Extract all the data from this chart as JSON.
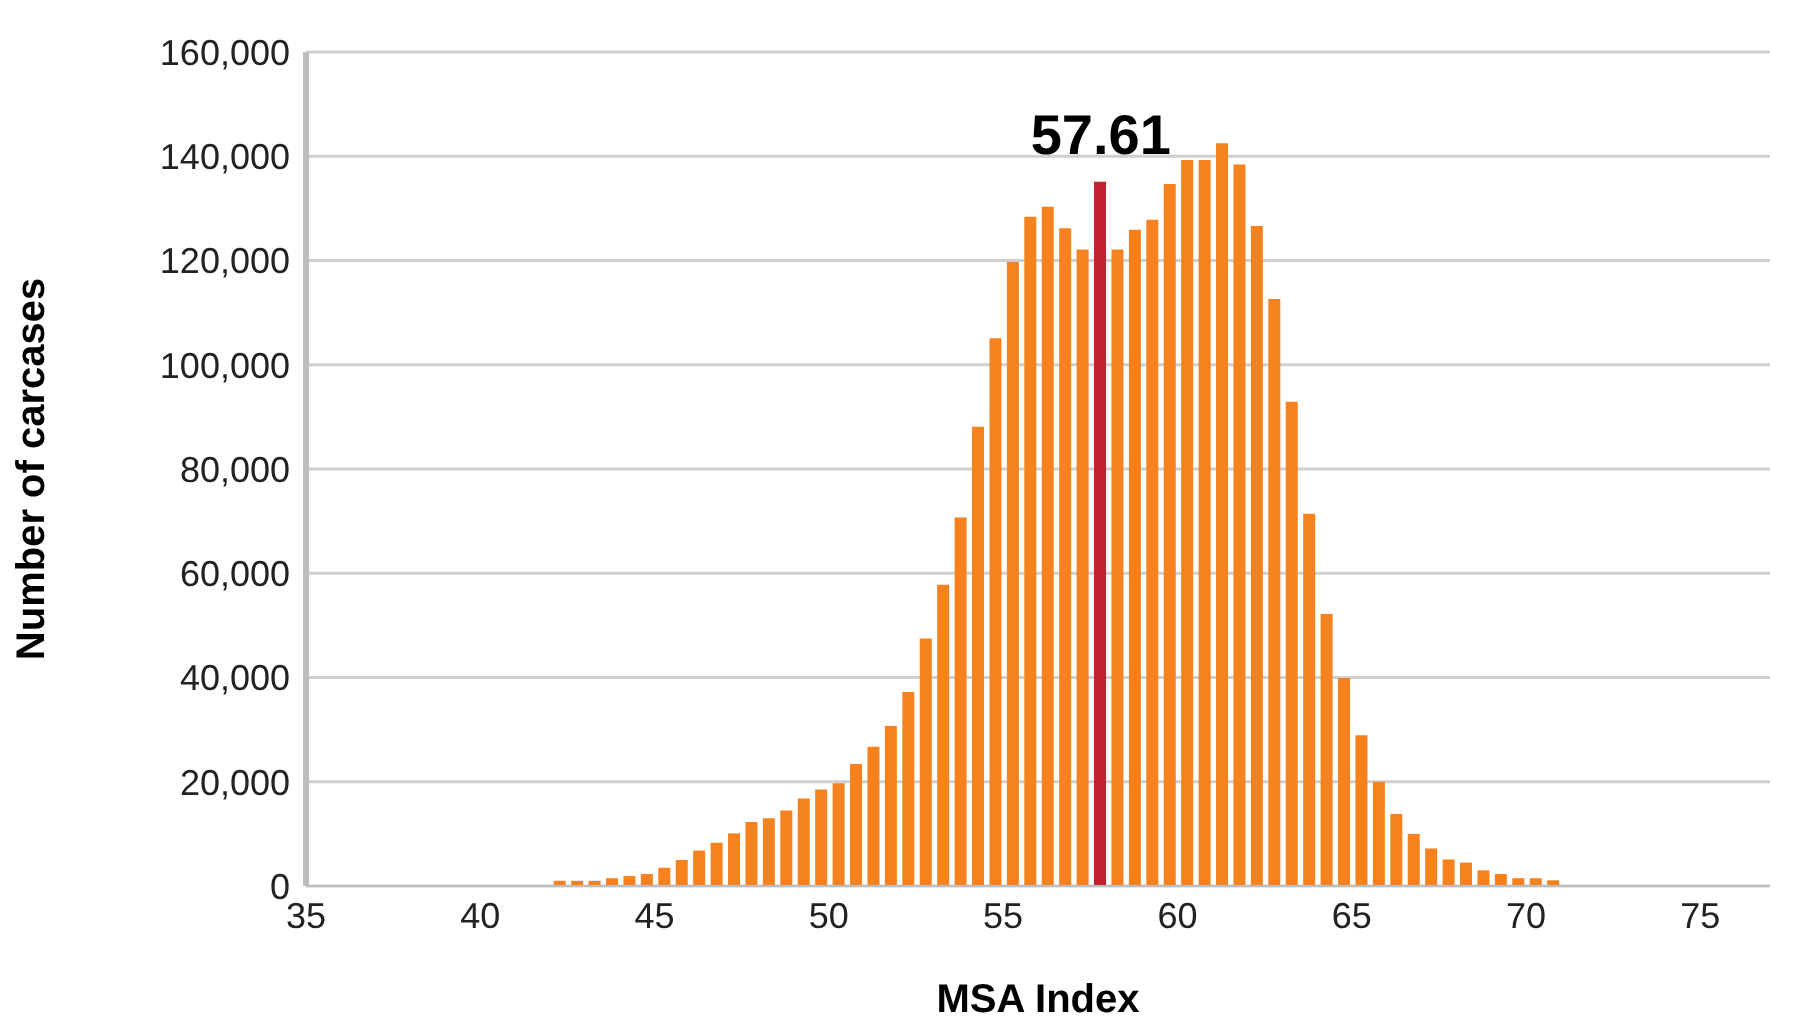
{
  "chart_data": {
    "type": "bar",
    "xlabel": "MSA Index",
    "ylabel": "Number of carcases",
    "x": [
      42.3,
      42.8,
      43.3,
      43.8,
      44.3,
      44.8,
      45.3,
      45.8,
      46.3,
      46.8,
      47.3,
      47.8,
      48.3,
      48.8,
      49.3,
      49.8,
      50.3,
      50.8,
      51.3,
      51.8,
      52.3,
      52.8,
      53.3,
      53.8,
      54.3,
      54.8,
      55.3,
      55.8,
      56.3,
      56.8,
      57.3,
      57.8,
      58.3,
      58.8,
      59.3,
      59.8,
      60.3,
      60.8,
      61.3,
      61.8,
      62.3,
      62.8,
      63.3,
      63.8,
      64.3,
      64.8,
      65.3,
      65.8,
      66.3,
      66.8,
      67.3,
      67.8,
      68.3,
      68.8,
      69.3,
      69.8,
      70.3,
      70.8
    ],
    "values": [
      1000,
      1000,
      1000,
      1500,
      1900,
      2300,
      3500,
      5000,
      6800,
      8300,
      10100,
      12300,
      13000,
      14500,
      16800,
      18500,
      19700,
      23400,
      26700,
      30700,
      37200,
      47500,
      57800,
      70700,
      88100,
      105100,
      119700,
      128400,
      130300,
      126200,
      122100,
      135100,
      122100,
      125900,
      127800,
      134700,
      139300,
      139300,
      142500,
      138400,
      126600,
      112600,
      92900,
      71400,
      52200,
      39900,
      28900,
      20000,
      13800,
      10000,
      7200,
      5100,
      4500,
      3000,
      2300,
      1500,
      1500,
      1100
    ],
    "colors": [
      "#f5821f",
      "#f5821f",
      "#f5821f",
      "#f5821f",
      "#f5821f",
      "#f5821f",
      "#f5821f",
      "#f5821f",
      "#f5821f",
      "#f5821f",
      "#f5821f",
      "#f5821f",
      "#f5821f",
      "#f5821f",
      "#f5821f",
      "#f5821f",
      "#f5821f",
      "#f5821f",
      "#f5821f",
      "#f5821f",
      "#f5821f",
      "#f5821f",
      "#f5821f",
      "#f5821f",
      "#f5821f",
      "#f5821f",
      "#f5821f",
      "#f5821f",
      "#f5821f",
      "#f5821f",
      "#f5821f",
      "#c0202f",
      "#f5821f",
      "#f5821f",
      "#f5821f",
      "#f5821f",
      "#f5821f",
      "#f5821f",
      "#f5821f",
      "#f5821f",
      "#f5821f",
      "#f5821f",
      "#f5821f",
      "#f5821f",
      "#f5821f",
      "#f5821f",
      "#f5821f",
      "#f5821f",
      "#f5821f",
      "#f5821f",
      "#f5821f",
      "#f5821f",
      "#f5821f",
      "#f5821f",
      "#f5821f",
      "#f5821f",
      "#f5821f",
      "#f5821f"
    ],
    "xlim": [
      35,
      77
    ],
    "xticks": [
      35,
      40,
      45,
      50,
      55,
      60,
      65,
      70,
      75
    ],
    "ylim": [
      0,
      160000
    ],
    "yticks": [
      0,
      {
        "value": 20000,
        "label": "20,000"
      },
      {
        "value": 40000,
        "label": "40,000"
      },
      {
        "value": 60000,
        "label": "60,000"
      },
      {
        "value": 80000,
        "label": "80,000"
      },
      {
        "value": 100000,
        "label": "100,000"
      },
      {
        "value": 120000,
        "label": "120,000"
      },
      {
        "value": 140000,
        "label": "140,000"
      },
      {
        "value": 160000,
        "label": "160,000"
      }
    ],
    "grid": "y",
    "legend": false,
    "annotations": [
      {
        "text": "57.61",
        "x": 57.8,
        "y": 135100
      }
    ]
  }
}
